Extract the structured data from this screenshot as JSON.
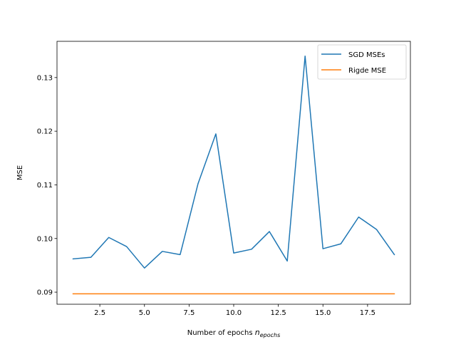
{
  "chart_data": {
    "type": "line",
    "xlabel": "Number of epochs",
    "xlabel_math_base": "n",
    "xlabel_math_subscript": "epochs",
    "ylabel": "MSE",
    "xlim": [
      0.1,
      19.9
    ],
    "ylim": [
      0.08775,
      0.13675
    ],
    "x_ticks": [
      2.5,
      5.0,
      7.5,
      10.0,
      12.5,
      15.0,
      17.5
    ],
    "x_tick_labels": [
      "2.5",
      "5.0",
      "7.5",
      "10.0",
      "12.5",
      "15.0",
      "17.5"
    ],
    "y_ticks": [
      0.09,
      0.1,
      0.11,
      0.12,
      0.13
    ],
    "y_tick_labels": [
      "0.09",
      "0.10",
      "0.11",
      "0.12",
      "0.13"
    ],
    "grid": false,
    "legend_position": "top-right",
    "series": [
      {
        "name": "SGD MSEs",
        "color": "#1f77b4",
        "x": [
          1,
          2,
          3,
          4,
          5,
          6,
          7,
          8,
          9,
          10,
          11,
          12,
          13,
          14,
          15,
          16,
          17,
          18,
          19
        ],
        "y": [
          0.0962,
          0.0965,
          0.1002,
          0.0985,
          0.0945,
          0.0976,
          0.097,
          0.1102,
          0.1195,
          0.0973,
          0.098,
          0.1013,
          0.0958,
          0.134,
          0.0981,
          0.099,
          0.104,
          0.1017,
          0.097
        ]
      },
      {
        "name": "Rigde MSE",
        "color": "#ff7f0e",
        "x": [
          1,
          2,
          3,
          4,
          5,
          6,
          7,
          8,
          9,
          10,
          11,
          12,
          13,
          14,
          15,
          16,
          17,
          18,
          19
        ],
        "y": [
          0.0897,
          0.0897,
          0.0897,
          0.0897,
          0.0897,
          0.0897,
          0.0897,
          0.0897,
          0.0897,
          0.0897,
          0.0897,
          0.0897,
          0.0897,
          0.0897,
          0.0897,
          0.0897,
          0.0897,
          0.0897,
          0.0897
        ]
      }
    ]
  }
}
